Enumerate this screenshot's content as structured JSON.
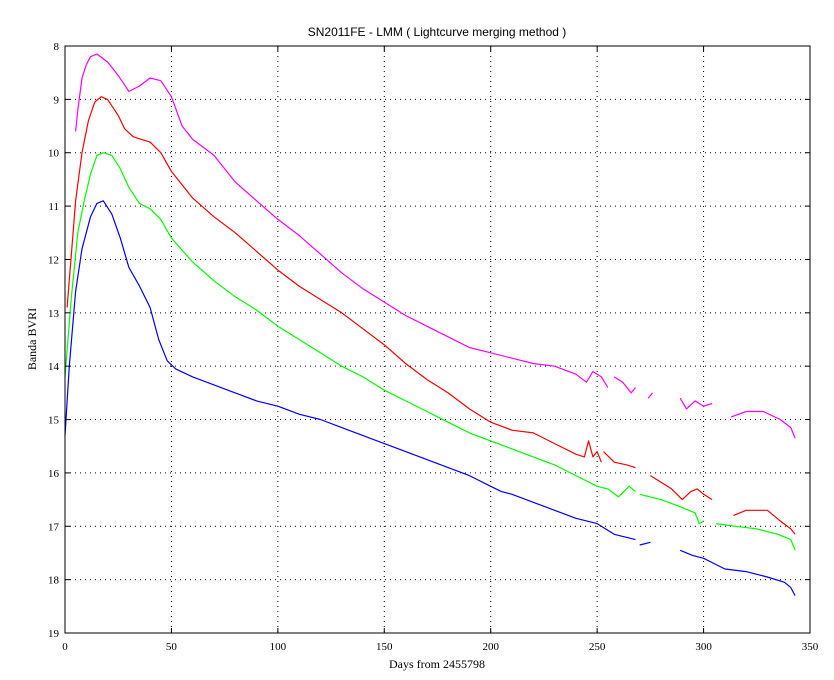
{
  "chart_data": {
    "type": "line",
    "title": "SN2011FE - LMM ( Lightcurve merging method )",
    "xlabel": "Days from 2455798",
    "ylabel": "Banda BVRI",
    "xlim": [
      0,
      350
    ],
    "ylim": [
      19,
      8
    ],
    "y_axis_inverted": true,
    "grid": true,
    "x_ticks": [
      0,
      50,
      100,
      150,
      200,
      250,
      300,
      350
    ],
    "y_ticks": [
      8,
      9,
      10,
      11,
      12,
      13,
      14,
      15,
      16,
      17,
      18,
      19
    ],
    "series": [
      {
        "color": "#ff00ff",
        "segments": [
          [
            [
              5,
              9.6
            ],
            [
              6,
              9.2
            ],
            [
              8,
              8.6
            ],
            [
              10,
              8.35
            ],
            [
              12,
              8.2
            ],
            [
              15,
              8.15
            ],
            [
              20,
              8.3
            ],
            [
              25,
              8.55
            ],
            [
              30,
              8.85
            ],
            [
              35,
              8.75
            ],
            [
              40,
              8.6
            ],
            [
              45,
              8.65
            ],
            [
              50,
              8.95
            ],
            [
              55,
              9.5
            ],
            [
              60,
              9.75
            ],
            [
              70,
              10.05
            ],
            [
              80,
              10.55
            ],
            [
              90,
              10.9
            ],
            [
              100,
              11.25
            ],
            [
              110,
              11.55
            ],
            [
              120,
              11.9
            ],
            [
              130,
              12.25
            ],
            [
              140,
              12.55
            ],
            [
              150,
              12.8
            ],
            [
              160,
              13.05
            ],
            [
              170,
              13.25
            ],
            [
              180,
              13.45
            ],
            [
              190,
              13.65
            ],
            [
              200,
              13.75
            ],
            [
              210,
              13.85
            ],
            [
              220,
              13.95
            ],
            [
              230,
              14.0
            ],
            [
              240,
              14.15
            ],
            [
              245,
              14.3
            ],
            [
              248,
              14.1
            ],
            [
              252,
              14.2
            ],
            [
              255,
              14.4
            ]
          ],
          [
            [
              258,
              14.2
            ],
            [
              262,
              14.3
            ],
            [
              266,
              14.5
            ],
            [
              268,
              14.4
            ]
          ],
          [
            [
              274,
              14.6
            ],
            [
              276,
              14.5
            ]
          ],
          [
            [
              289,
              14.6
            ],
            [
              292,
              14.8
            ],
            [
              296,
              14.65
            ],
            [
              300,
              14.75
            ],
            [
              304,
              14.7
            ]
          ],
          [
            [
              313,
              14.95
            ],
            [
              320,
              14.85
            ],
            [
              328,
              14.85
            ],
            [
              336,
              15.0
            ],
            [
              341,
              15.15
            ],
            [
              343,
              15.35
            ]
          ]
        ]
      },
      {
        "color": "#ff0000",
        "segments": [
          [
            [
              1,
              12.9
            ],
            [
              3,
              11.9
            ],
            [
              5,
              10.9
            ],
            [
              8,
              10.0
            ],
            [
              11,
              9.4
            ],
            [
              14,
              9.05
            ],
            [
              17,
              8.95
            ],
            [
              20,
              9.0
            ],
            [
              25,
              9.3
            ],
            [
              28,
              9.55
            ],
            [
              32,
              9.7
            ],
            [
              36,
              9.75
            ],
            [
              40,
              9.8
            ],
            [
              45,
              10.0
            ],
            [
              50,
              10.35
            ],
            [
              60,
              10.85
            ],
            [
              70,
              11.2
            ],
            [
              80,
              11.5
            ],
            [
              90,
              11.85
            ],
            [
              100,
              12.2
            ],
            [
              110,
              12.5
            ],
            [
              120,
              12.75
            ],
            [
              130,
              13.0
            ],
            [
              140,
              13.3
            ],
            [
              150,
              13.6
            ],
            [
              160,
              13.95
            ],
            [
              170,
              14.25
            ],
            [
              180,
              14.5
            ],
            [
              190,
              14.8
            ],
            [
              200,
              15.05
            ],
            [
              210,
              15.2
            ],
            [
              220,
              15.25
            ],
            [
              230,
              15.45
            ],
            [
              240,
              15.65
            ],
            [
              244,
              15.7
            ],
            [
              246,
              15.4
            ],
            [
              248,
              15.7
            ],
            [
              250,
              15.6
            ],
            [
              252,
              15.8
            ]
          ],
          [
            [
              253,
              15.6
            ],
            [
              258,
              15.8
            ],
            [
              264,
              15.85
            ],
            [
              268,
              15.9
            ]
          ],
          [
            [
              275,
              16.05
            ],
            [
              285,
              16.3
            ],
            [
              290,
              16.5
            ],
            [
              294,
              16.35
            ],
            [
              297,
              16.3
            ],
            [
              300,
              16.4
            ],
            [
              304,
              16.5
            ]
          ],
          [
            [
              314,
              16.8
            ],
            [
              320,
              16.7
            ],
            [
              330,
              16.7
            ],
            [
              336,
              16.9
            ],
            [
              341,
              17.05
            ],
            [
              343,
              17.15
            ]
          ]
        ]
      },
      {
        "color": "#00ff00",
        "segments": [
          [
            [
              0,
              14.2
            ],
            [
              3,
              12.7
            ],
            [
              6,
              11.5
            ],
            [
              9,
              10.9
            ],
            [
              12,
              10.4
            ],
            [
              15,
              10.05
            ],
            [
              18,
              10.0
            ],
            [
              22,
              10.05
            ],
            [
              26,
              10.3
            ],
            [
              30,
              10.65
            ],
            [
              35,
              10.95
            ],
            [
              40,
              11.05
            ],
            [
              45,
              11.25
            ],
            [
              50,
              11.6
            ],
            [
              60,
              12.05
            ],
            [
              70,
              12.4
            ],
            [
              80,
              12.7
            ],
            [
              90,
              12.95
            ],
            [
              100,
              13.25
            ],
            [
              110,
              13.5
            ],
            [
              120,
              13.75
            ],
            [
              130,
              14.0
            ],
            [
              140,
              14.2
            ],
            [
              150,
              14.45
            ],
            [
              160,
              14.65
            ],
            [
              170,
              14.85
            ],
            [
              180,
              15.05
            ],
            [
              190,
              15.25
            ],
            [
              200,
              15.4
            ],
            [
              210,
              15.55
            ],
            [
              220,
              15.7
            ],
            [
              230,
              15.85
            ],
            [
              240,
              16.05
            ],
            [
              250,
              16.25
            ],
            [
              255,
              16.3
            ],
            [
              260,
              16.45
            ],
            [
              265,
              16.25
            ],
            [
              268,
              16.35
            ]
          ],
          [
            [
              270,
              16.4
            ],
            [
              280,
              16.5
            ],
            [
              290,
              16.65
            ],
            [
              296,
              16.75
            ],
            [
              298,
              16.95
            ],
            [
              300,
              16.9
            ]
          ],
          [
            [
              306,
              16.95
            ],
            [
              315,
              17.0
            ],
            [
              325,
              17.05
            ],
            [
              335,
              17.15
            ],
            [
              341,
              17.25
            ],
            [
              343,
              17.45
            ]
          ]
        ]
      },
      {
        "color": "#0000ff",
        "segments": [
          [
            [
              0,
              15.3
            ],
            [
              2,
              14.0
            ],
            [
              5,
              12.6
            ],
            [
              8,
              11.8
            ],
            [
              12,
              11.2
            ],
            [
              15,
              10.95
            ],
            [
              18,
              10.9
            ],
            [
              22,
              11.15
            ],
            [
              26,
              11.6
            ],
            [
              30,
              12.15
            ],
            [
              35,
              12.5
            ],
            [
              40,
              12.9
            ],
            [
              44,
              13.5
            ],
            [
              48,
              13.9
            ],
            [
              52,
              14.05
            ],
            [
              60,
              14.2
            ],
            [
              70,
              14.35
            ],
            [
              80,
              14.5
            ],
            [
              90,
              14.65
            ],
            [
              100,
              14.75
            ],
            [
              110,
              14.9
            ],
            [
              120,
              15.0
            ],
            [
              130,
              15.15
            ],
            [
              140,
              15.3
            ],
            [
              150,
              15.45
            ],
            [
              160,
              15.6
            ],
            [
              170,
              15.75
            ],
            [
              180,
              15.9
            ],
            [
              190,
              16.05
            ],
            [
              200,
              16.25
            ],
            [
              205,
              16.35
            ],
            [
              210,
              16.4
            ],
            [
              220,
              16.55
            ],
            [
              230,
              16.7
            ],
            [
              240,
              16.85
            ],
            [
              250,
              16.95
            ],
            [
              258,
              17.15
            ],
            [
              263,
              17.2
            ],
            [
              268,
              17.25
            ]
          ],
          [
            [
              270,
              17.35
            ],
            [
              275,
              17.3
            ]
          ],
          [
            [
              289,
              17.45
            ],
            [
              295,
              17.55
            ],
            [
              300,
              17.6
            ],
            [
              305,
              17.7
            ],
            [
              310,
              17.8
            ],
            [
              320,
              17.85
            ],
            [
              330,
              17.95
            ],
            [
              338,
              18.05
            ],
            [
              341,
              18.15
            ],
            [
              343,
              18.3
            ]
          ]
        ]
      }
    ]
  }
}
